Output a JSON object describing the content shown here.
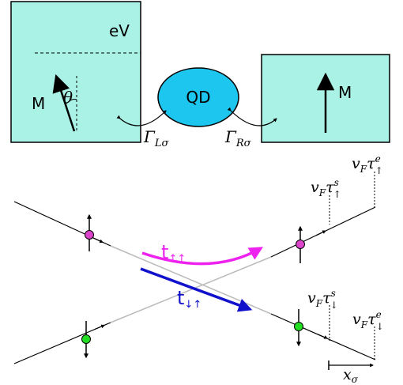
{
  "top": {
    "left_lead": {
      "bias_label": "eV",
      "magnet_label": "M",
      "angle_label": "θ"
    },
    "dot": {
      "label": "QD"
    },
    "coupling_left": {
      "main": "Γ",
      "sub": "Lσ"
    },
    "coupling_right": {
      "main": "Γ",
      "sub": "Rσ"
    },
    "right_lead": {
      "magnet_label": "M"
    }
  },
  "bottom": {
    "t_upup": {
      "main": "t",
      "sub": "↑↑"
    },
    "t_downup": {
      "main": "t",
      "sub": "↓↑"
    },
    "tau_up_s": {
      "v": "v",
      "v_sub": "F",
      "tau": "τ",
      "sup": "s",
      "sub": "↑"
    },
    "tau_up_e": {
      "v": "v",
      "v_sub": "F",
      "tau": "τ",
      "sup": "e",
      "sub": "↑"
    },
    "tau_down_s": {
      "v": "v",
      "v_sub": "F",
      "tau": "τ",
      "sup": "s",
      "sub": "↓"
    },
    "tau_down_e": {
      "v": "v",
      "v_sub": "F",
      "tau": "τ",
      "sup": "e",
      "sub": "↓"
    },
    "x_label": {
      "main": "x",
      "sub": "σ"
    }
  },
  "colors": {
    "lead_fill": "#aaf2e6",
    "dot_fill": "#1cc6ee",
    "magenta": "#ee22ee",
    "blue": "#1111cc",
    "green_dot": "#22dd22",
    "pink_dot": "#dd44cc"
  }
}
